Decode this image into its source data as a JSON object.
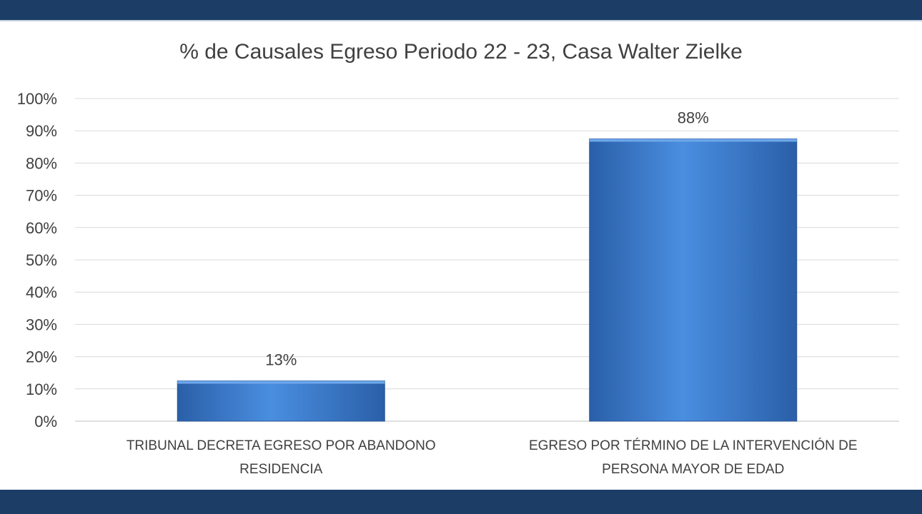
{
  "header_band": {
    "color": "#1b3d66"
  },
  "footer_band": {
    "color": "#1b3d66"
  },
  "chart_data": {
    "type": "bar",
    "title": "% de Causales Egreso Periodo 22 - 23, Casa Walter Zielke",
    "categories": [
      [
        "TRIBUNAL DECRETA EGRESO POR ABANDONO",
        "RESIDENCIA"
      ],
      [
        "EGRESO POR TÉRMINO DE LA INTERVENCIÓN DE",
        "PERSONA MAYOR DE EDAD"
      ]
    ],
    "values": [
      12.5,
      87.5
    ],
    "data_labels": [
      "13%",
      "88%"
    ],
    "y_ticks": [
      "0%",
      "10%",
      "20%",
      "30%",
      "40%",
      "50%",
      "60%",
      "70%",
      "80%",
      "90%",
      "100%"
    ],
    "ylim": [
      0,
      100
    ],
    "grid": true,
    "bar_color": "#3b7bcf",
    "xlabel": "",
    "ylabel": ""
  }
}
